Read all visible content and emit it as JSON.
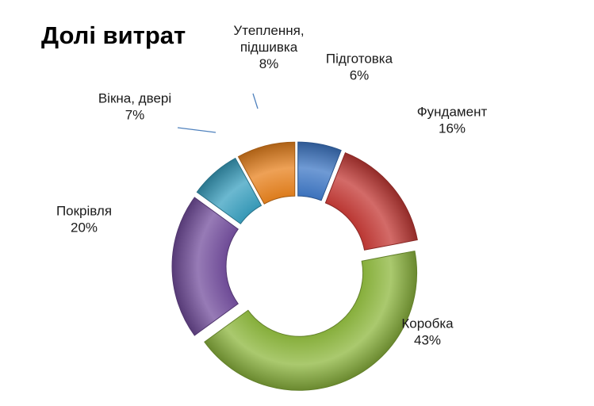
{
  "chart_data": {
    "type": "pie",
    "variant": "doughnut",
    "exploded": true,
    "title": "Долі витрат",
    "legend": "none",
    "slices": [
      {
        "label": "Підготовка",
        "value": 6,
        "value_label": "6%",
        "color": "#3f78c6"
      },
      {
        "label": "Фундамент",
        "value": 16,
        "value_label": "16%",
        "color": "#c43a36"
      },
      {
        "label": "Коробка",
        "value": 43,
        "value_label": "43%",
        "color": "#8db73e"
      },
      {
        "label": "Покрівля",
        "value": 20,
        "value_label": "20%",
        "color": "#744f9e"
      },
      {
        "label": "Вікна, двері",
        "value": 7,
        "value_label": "7%",
        "color": "#3aa0c0"
      },
      {
        "label": "Утеплення, підшивка",
        "label_lines": [
          "Утеплення,",
          "підшивка"
        ],
        "value": 8,
        "value_label": "8%",
        "color": "#e8821e"
      }
    ]
  }
}
